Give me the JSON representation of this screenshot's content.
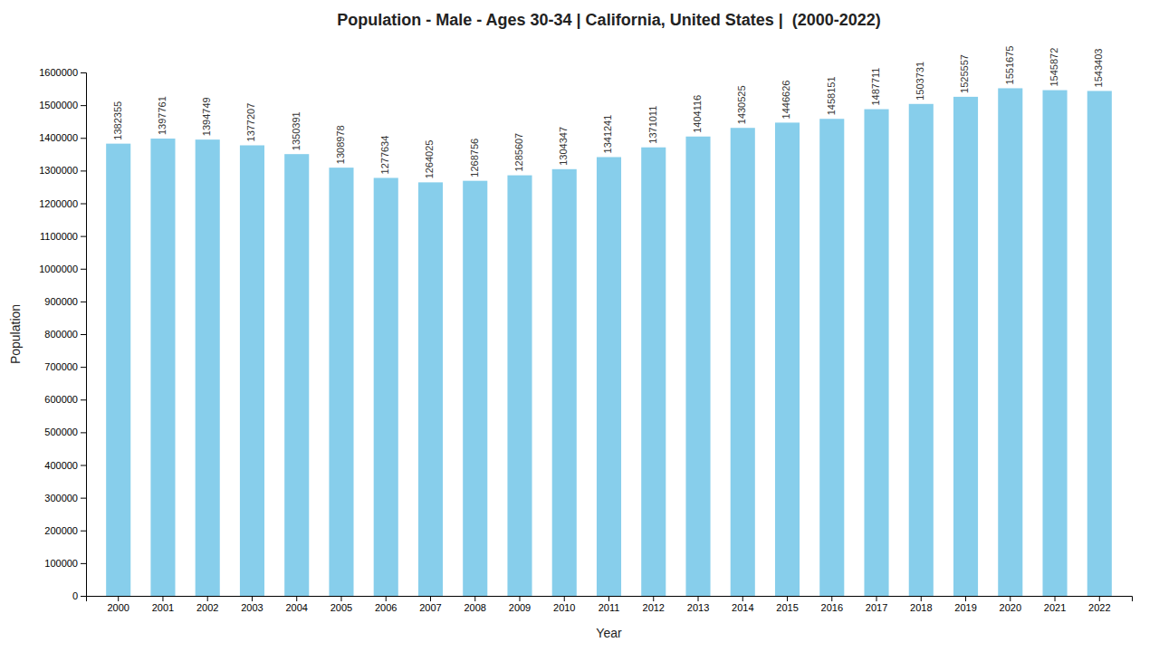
{
  "chart_data": {
    "type": "bar",
    "title": "Population - Male - Ages 30-34 | California, United States |  (2000-2022)",
    "xlabel": "Year",
    "ylabel": "Population",
    "categories": [
      "2000",
      "2001",
      "2002",
      "2003",
      "2004",
      "2005",
      "2006",
      "2007",
      "2008",
      "2009",
      "2010",
      "2011",
      "2012",
      "2013",
      "2014",
      "2015",
      "2016",
      "2017",
      "2018",
      "2019",
      "2020",
      "2021",
      "2022"
    ],
    "values": [
      1382355,
      1397761,
      1394749,
      1377207,
      1350391,
      1308978,
      1277634,
      1264025,
      1268756,
      1285607,
      1304347,
      1341241,
      1371011,
      1404116,
      1430525,
      1446626,
      1458151,
      1487711,
      1503731,
      1525557,
      1551675,
      1545872,
      1543403
    ],
    "color": "#87CEEB",
    "ylim": [
      0,
      1600000
    ],
    "yticks": [
      0,
      100000,
      200000,
      300000,
      400000,
      500000,
      600000,
      700000,
      800000,
      900000,
      1000000,
      1100000,
      1200000,
      1300000,
      1400000,
      1500000,
      1600000
    ],
    "grid": false,
    "data_labels": true
  }
}
